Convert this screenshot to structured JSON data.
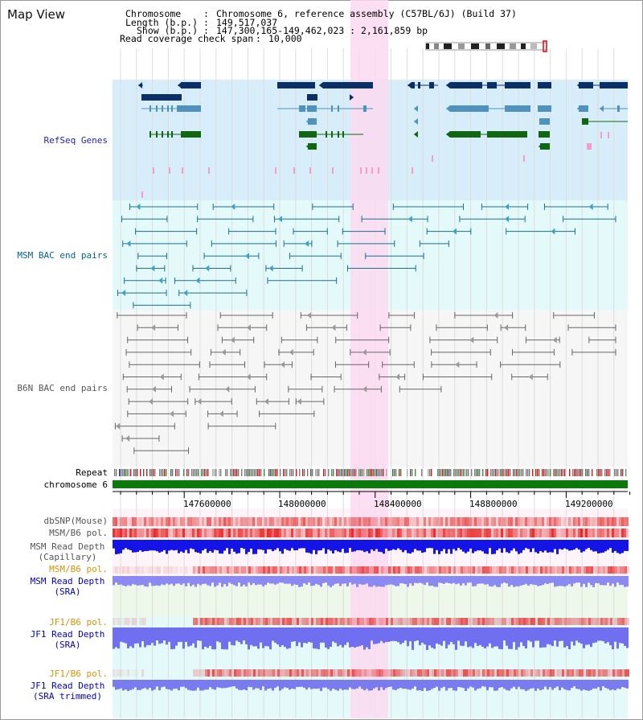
{
  "view": {
    "title": "Map View",
    "header": {
      "chromosome_label": "Chromosome",
      "chromosome_value": "Chromosome 6, reference assembly (C57BL/6J) (Build 37)",
      "length_label": "Length (b.p.)",
      "length_value": "149,517,037",
      "show_label": "Show (b.p.)",
      "show_value": "147,300,165-149,462,023 : 2,161,859 bp",
      "coverage_label": "Read coverage check span",
      "coverage_value": "10,000"
    }
  },
  "tracks": {
    "refseq": "RefSeq Genes",
    "msm_bac": "MSM BAC end pairs",
    "b6n_bac": "B6N BAC end pairs",
    "repeat": "Repeat",
    "chromosome": "chromosome 6",
    "dbsnp": "dbSNP(Mouse)",
    "msm_b6_pol": "MSM/B6 pol.",
    "msm_depth_cap_1": "MSM Read Depth",
    "msm_depth_cap_2": "(Capillary)",
    "msm_b6_pol_sra": "MSM/B6 pol.",
    "msm_depth_sra_1": "MSM Read Depth",
    "msm_depth_sra_2": "(SRA)",
    "jf1_b6_pol": "JF1/B6 pol.",
    "jf1_depth_1": "JF1 Read Depth",
    "jf1_depth_2": "(SRA)",
    "jf1_b6_pol_trim": "JF1/B6 pol.",
    "jf1_trim_1": "JF1 Read Depth",
    "jf1_trim_2": "(SRA trimmed)"
  },
  "axis": {
    "ticks": [
      "147600000",
      "148000000",
      "148400000",
      "148800000",
      "149200000"
    ]
  },
  "colors": {
    "refseq_label": "#2222bb",
    "msm_label": "#006688",
    "b6n_label": "#555555",
    "orange_label": "#e09000",
    "blue_label": "#0000cc",
    "gray_label": "#555555",
    "highlight": "#fcd9f0",
    "refseq_bg": "#d7edf9",
    "msm_bg": "#e4fafa",
    "b6n_bg": "#f6f6f6",
    "chrom_green": "#0a7a0a"
  }
}
